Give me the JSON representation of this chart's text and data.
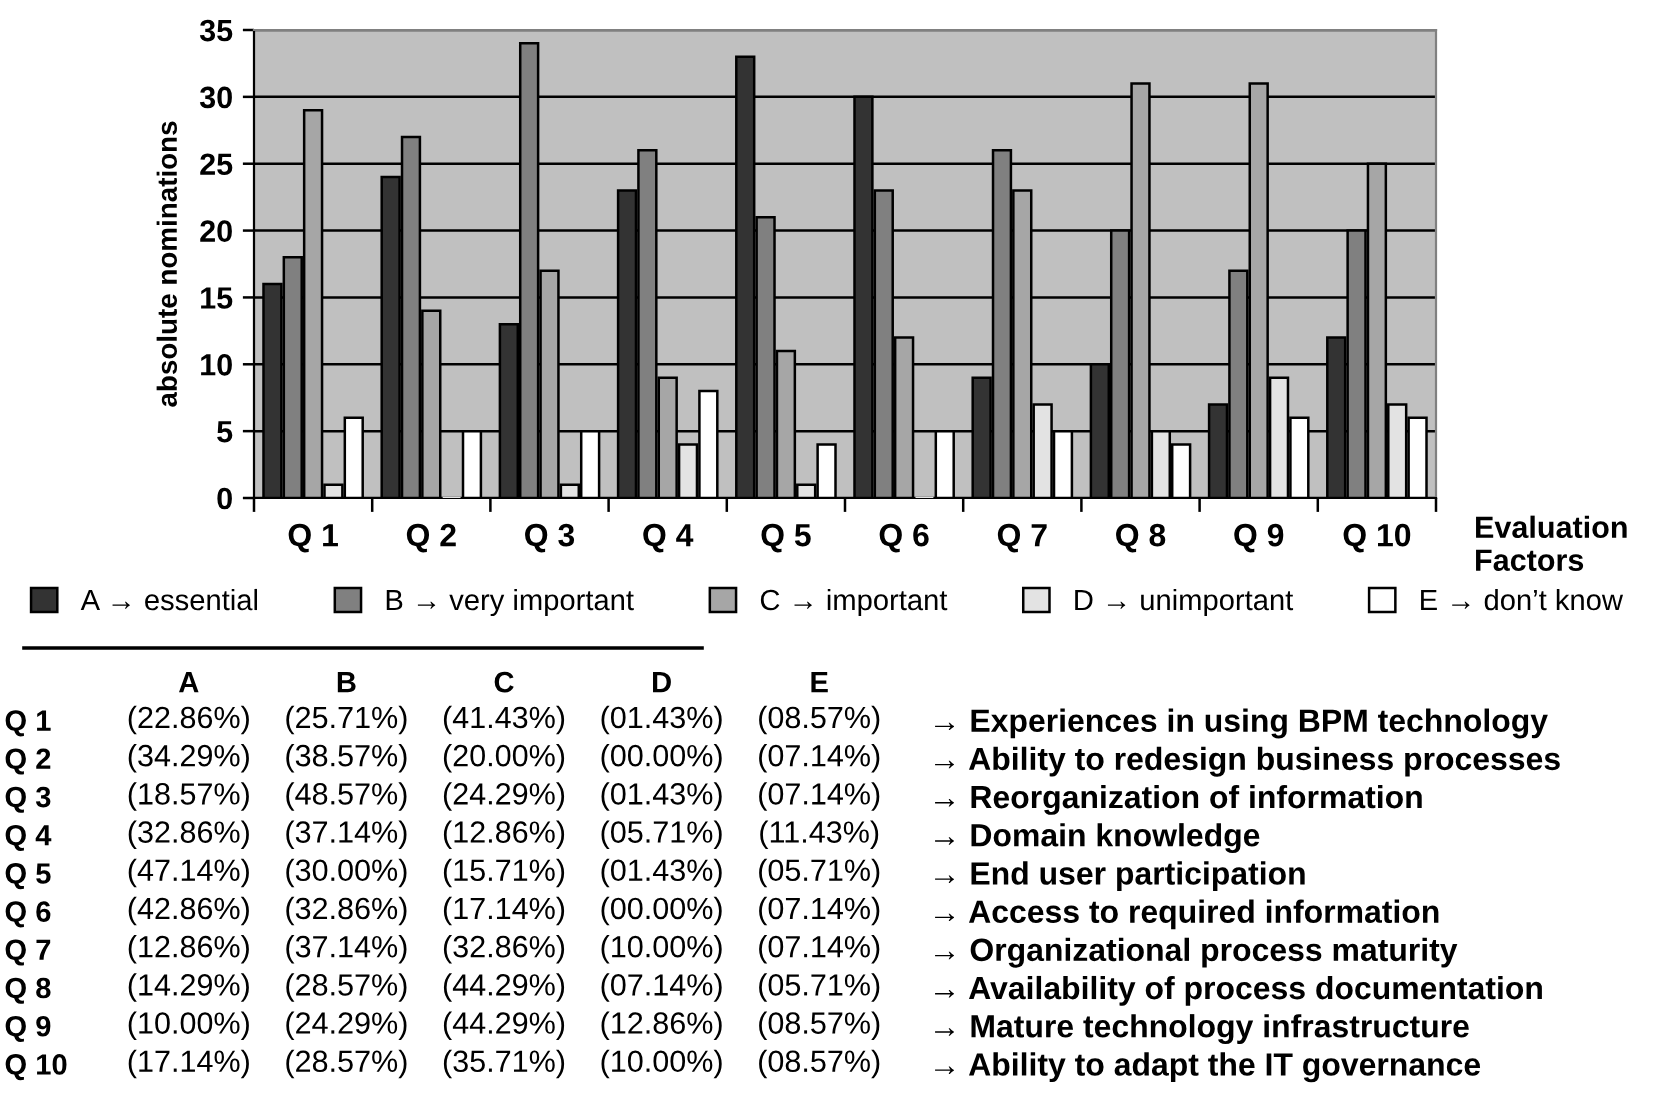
{
  "chart_data": [
    {
      "type": "bar",
      "categories": [
        "Q 1",
        "Q 2",
        "Q 3",
        "Q 4",
        "Q 5",
        "Q 6",
        "Q 7",
        "Q 8",
        "Q 9",
        "Q 10"
      ],
      "series": [
        {
          "name": "A → essential",
          "color": "#333333",
          "values": [
            16,
            24,
            13,
            23,
            33,
            30,
            9,
            10,
            7,
            12
          ]
        },
        {
          "name": "B → very important",
          "color": "#808080",
          "values": [
            18,
            27,
            34,
            26,
            21,
            23,
            26,
            20,
            17,
            20
          ]
        },
        {
          "name": "C → important",
          "color": "#a6a6a6",
          "values": [
            29,
            14,
            17,
            9,
            11,
            12,
            23,
            31,
            31,
            25
          ]
        },
        {
          "name": "D → unimportant",
          "color": "#e3e3e3",
          "values": [
            1,
            0,
            1,
            4,
            1,
            0,
            7,
            5,
            9,
            7
          ]
        },
        {
          "name": "E → don’t know",
          "color": "#ffffff",
          "values": [
            6,
            5,
            5,
            8,
            4,
            5,
            5,
            4,
            6,
            6
          ]
        }
      ],
      "ylabel": "absolute nominations",
      "xlabel": "Evaluation Factors",
      "ylim": [
        0,
        35
      ],
      "yticks": [
        0,
        5,
        10,
        15,
        20,
        25,
        30,
        35
      ],
      "grid": "y",
      "legend": "bottom"
    },
    {
      "type": "other",
      "categories": [
        "A",
        "B",
        "C",
        "D",
        "E"
      ],
      "y_categories": [
        "Q 1",
        "Q 2",
        "Q 3",
        "Q 4",
        "Q 5",
        "Q 6",
        "Q 7",
        "Q 8",
        "Q 9",
        "Q 10"
      ],
      "y2_categories": [
        "→ Experiences in using BPM technology",
        "→ Ability to redesign business processes",
        "→ Reorganization of information",
        "→ Domain knowledge",
        "→ End user participation",
        "→ Access to required information",
        "→ Organizational process maturity",
        "→ Availability of process documentation",
        "→ Mature technology infrastructure",
        "→ Ability to adapt the IT governance"
      ],
      "cell_labels": [
        [
          "(22.86%)",
          "(25.71%)",
          "(41.43%)",
          "(01.43%)",
          "(08.57%)"
        ],
        [
          "(34.29%)",
          "(38.57%)",
          "(20.00%)",
          "(00.00%)",
          "(07.14%)"
        ],
        [
          "(18.57%)",
          "(48.57%)",
          "(24.29%)",
          "(01.43%)",
          "(07.14%)"
        ],
        [
          "(32.86%)",
          "(37.14%)",
          "(12.86%)",
          "(05.71%)",
          "(11.43%)"
        ],
        [
          "(47.14%)",
          "(30.00%)",
          "(15.71%)",
          "(01.43%)",
          "(05.71%)"
        ],
        [
          "(42.86%)",
          "(32.86%)",
          "(17.14%)",
          "(00.00%)",
          "(07.14%)"
        ],
        [
          "(12.86%)",
          "(37.14%)",
          "(32.86%)",
          "(10.00%)",
          "(07.14%)"
        ],
        [
          "(14.29%)",
          "(28.57%)",
          "(44.29%)",
          "(07.14%)",
          "(05.71%)"
        ],
        [
          "(10.00%)",
          "(24.29%)",
          "(44.29%)",
          "(12.86%)",
          "(08.57%)"
        ],
        [
          "(17.14%)",
          "(28.57%)",
          "(35.71%)",
          "(10.00%)",
          "(08.57%)"
        ]
      ]
    }
  ]
}
